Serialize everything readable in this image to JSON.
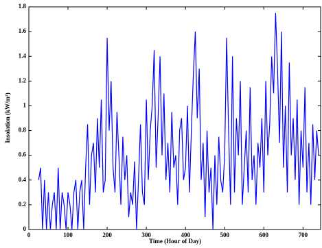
{
  "chart_data": {
    "type": "line",
    "xlabel": "Time (Hour of Day)",
    "ylabel": "Insolation (kW/m²)",
    "xlim": [
      0,
      745
    ],
    "xticks": [
      0,
      100,
      200,
      300,
      400,
      500,
      600,
      700
    ],
    "ylim": [
      0,
      1.8
    ],
    "yticks": [
      0,
      0.2,
      0.4,
      0.6,
      0.8,
      1,
      1.2,
      1.4,
      1.6,
      1.8
    ],
    "x": [
      25,
      30,
      35,
      40,
      45,
      50,
      55,
      60,
      65,
      70,
      75,
      80,
      85,
      90,
      95,
      100,
      105,
      110,
      115,
      120,
      125,
      130,
      135,
      140,
      145,
      150,
      155,
      160,
      165,
      170,
      175,
      180,
      185,
      190,
      195,
      200,
      205,
      210,
      215,
      220,
      225,
      230,
      235,
      240,
      245,
      250,
      255,
      260,
      265,
      270,
      275,
      280,
      285,
      290,
      295,
      300,
      305,
      310,
      315,
      320,
      325,
      330,
      335,
      340,
      345,
      350,
      355,
      360,
      365,
      370,
      375,
      380,
      385,
      390,
      395,
      400,
      405,
      410,
      415,
      420,
      425,
      430,
      435,
      440,
      445,
      450,
      455,
      460,
      465,
      470,
      475,
      480,
      485,
      490,
      495,
      500,
      505,
      510,
      515,
      520,
      525,
      530,
      535,
      540,
      545,
      550,
      555,
      560,
      565,
      570,
      575,
      580,
      585,
      590,
      595,
      600,
      605,
      610,
      615,
      620,
      625,
      630,
      635,
      640,
      645,
      650,
      655,
      660,
      665,
      670,
      675,
      680,
      685,
      690,
      695,
      700,
      705,
      710,
      715,
      720,
      725,
      730,
      735,
      740
    ],
    "series": [
      {
        "color": "#0000ff",
        "values": [
          0.4,
          0.5,
          0,
          0.4,
          0,
          0.3,
          0,
          0.2,
          0.3,
          0,
          0.5,
          0,
          0.3,
          0.2,
          0,
          0.3,
          0.2,
          0,
          0.3,
          0.4,
          0,
          0.3,
          0.4,
          0,
          0.5,
          0.85,
          0.2,
          0.6,
          0.7,
          0.3,
          0.9,
          0.5,
          1.05,
          0.3,
          0.4,
          1.55,
          0.8,
          1.2,
          0.5,
          0.3,
          0.95,
          0.6,
          0.2,
          0.75,
          0.4,
          0.6,
          0.1,
          0.3,
          0.2,
          0.55,
          0,
          0.4,
          0.85,
          0.3,
          0.2,
          1.05,
          0.4,
          0.8,
          1.0,
          1.45,
          0.5,
          0.9,
          1.4,
          0.6,
          1.1,
          0.4,
          0.7,
          0.3,
          0.95,
          0.5,
          0.6,
          0.2,
          0.8,
          0.9,
          0.4,
          0.5,
          1.0,
          0.3,
          0.8,
          1.25,
          1.6,
          0.9,
          1.3,
          0.4,
          0.7,
          0.1,
          0.8,
          0.3,
          0.5,
          0,
          0.6,
          0.2,
          0.75,
          0.4,
          0.3,
          0.6,
          1.55,
          0.8,
          0.2,
          1.4,
          0.3,
          0.9,
          0.6,
          1.2,
          0.2,
          0.5,
          0.8,
          0.3,
          1.15,
          0.4,
          0.6,
          0.2,
          0.7,
          0.5,
          0.9,
          0.3,
          1.2,
          0.6,
          0.85,
          1.4,
          1.1,
          1.75,
          1.3,
          0.7,
          1.6,
          0.5,
          1.0,
          0.3,
          1.35,
          0.6,
          0.9,
          0.4,
          1.05,
          0.2,
          0.8,
          0.5,
          1.15,
          0.3,
          0.7,
          0.2,
          0.85,
          0.4,
          0.8,
          0.6
        ]
      }
    ]
  }
}
